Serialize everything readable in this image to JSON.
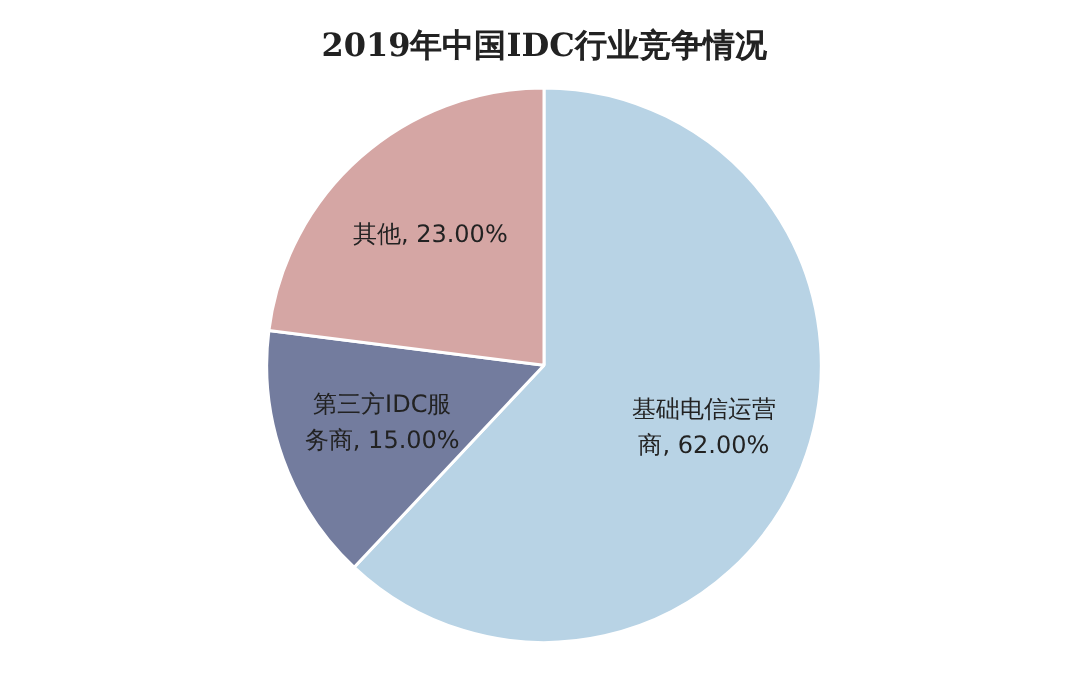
{
  "chart_data": {
    "type": "pie",
    "title": "2019年中国IDC行业竞争情况",
    "categories": [
      "基础电信运营商",
      "第三方IDC服务商",
      "其他"
    ],
    "values": [
      62,
      15,
      23
    ],
    "value_labels": [
      "62.00%",
      "15.00%",
      "23.00%"
    ],
    "colors": [
      "#b8d3e5",
      "#737c9e",
      "#d5a6a4"
    ],
    "legend": false
  }
}
